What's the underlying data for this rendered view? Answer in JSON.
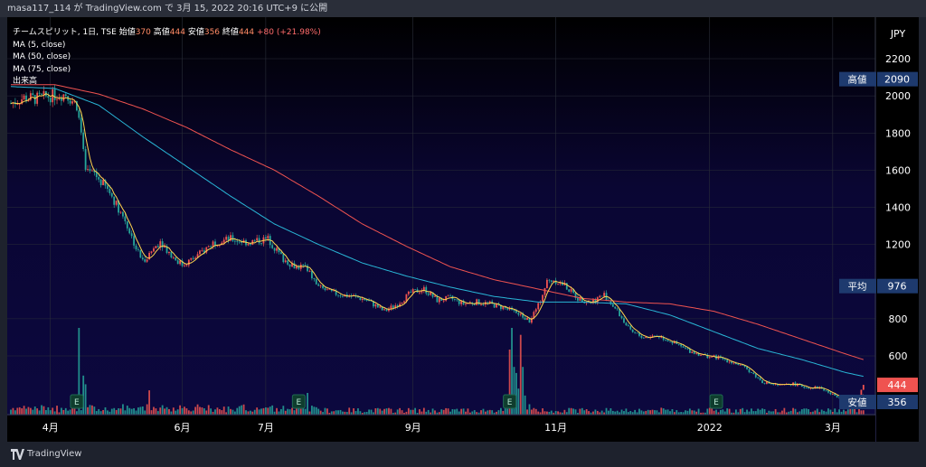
{
  "header": {
    "text": "masa117_114 が TradingView.com で 3月 15, 2022 20:16 UTC+9 に公開"
  },
  "legend": {
    "title": "チームスピリット, 1日, TSE",
    "o_label": "始値",
    "o_val": "370",
    "h_label": "高値",
    "h_val": "444",
    "l_label": "安値",
    "l_val": "356",
    "c_label": "終値",
    "c_val": "444",
    "change": "+80 (+21.98%)",
    "ma5": "MA (5, close)",
    "ma50": "MA (50, close)",
    "ma75": "MA (75, close)",
    "volume": "出来高"
  },
  "footer": {
    "brand": "TradingView",
    "logo_icon": "tradingview-logo-icon"
  },
  "colors": {
    "up": "#ef5350",
    "down": "#26a69a",
    "ma5": "#ffd54f",
    "ma50": "#29b6d6",
    "ma75": "#ef5350"
  },
  "chart_data": {
    "type": "candlestick",
    "currency": "JPY",
    "yticks": [
      "2200",
      "2000",
      "1800",
      "1600",
      "1400",
      "1200",
      "800",
      "600"
    ],
    "ylim": [
      350,
      2250
    ],
    "xticks": [
      "4月",
      "6月",
      "7月",
      "9月",
      "11月",
      "2022",
      "3月"
    ],
    "xtick_days": [
      18,
      78,
      116,
      183,
      248,
      318,
      374
    ],
    "days": 395,
    "labels": {
      "high": {
        "text": "高値",
        "value": "2090"
      },
      "avg": {
        "text": "平均",
        "value": "976"
      },
      "low": {
        "text": "安値",
        "value": "356"
      },
      "last": {
        "value": "444"
      }
    },
    "earnings_days": [
      30,
      131,
      227,
      321
    ],
    "earnings_icon": "E",
    "price_anchors": [
      [
        0,
        1960
      ],
      [
        6,
        1990
      ],
      [
        12,
        1985
      ],
      [
        18,
        2000
      ],
      [
        25,
        2010
      ],
      [
        30,
        1950
      ],
      [
        32,
        1800
      ],
      [
        34,
        1580
      ],
      [
        38,
        1580
      ],
      [
        45,
        1480
      ],
      [
        52,
        1330
      ],
      [
        57,
        1180
      ],
      [
        60,
        1110
      ],
      [
        63,
        1150
      ],
      [
        68,
        1220
      ],
      [
        73,
        1140
      ],
      [
        78,
        1090
      ],
      [
        84,
        1130
      ],
      [
        92,
        1210
      ],
      [
        100,
        1230
      ],
      [
        108,
        1210
      ],
      [
        112,
        1220
      ],
      [
        117,
        1230
      ],
      [
        124,
        1120
      ],
      [
        130,
        1080
      ],
      [
        134,
        1080
      ],
      [
        140,
        970
      ],
      [
        146,
        940
      ],
      [
        150,
        930
      ],
      [
        156,
        920
      ],
      [
        162,
        900
      ],
      [
        170,
        840
      ],
      [
        176,
        880
      ],
      [
        182,
        940
      ],
      [
        188,
        960
      ],
      [
        194,
        900
      ],
      [
        200,
        910
      ],
      [
        206,
        880
      ],
      [
        212,
        890
      ],
      [
        218,
        880
      ],
      [
        224,
        860
      ],
      [
        230,
        830
      ],
      [
        236,
        790
      ],
      [
        240,
        870
      ],
      [
        244,
        1000
      ],
      [
        247,
        1010
      ],
      [
        252,
        980
      ],
      [
        258,
        910
      ],
      [
        264,
        890
      ],
      [
        270,
        930
      ],
      [
        276,
        840
      ],
      [
        282,
        730
      ],
      [
        288,
        700
      ],
      [
        294,
        710
      ],
      [
        300,
        680
      ],
      [
        308,
        630
      ],
      [
        316,
        600
      ],
      [
        322,
        590
      ],
      [
        330,
        560
      ],
      [
        336,
        520
      ],
      [
        342,
        460
      ],
      [
        350,
        440
      ],
      [
        356,
        450
      ],
      [
        362,
        430
      ],
      [
        368,
        430
      ],
      [
        374,
        390
      ],
      [
        380,
        370
      ],
      [
        385,
        356
      ],
      [
        388,
        444
      ]
    ],
    "ma50_anchors": [
      [
        0,
        2050
      ],
      [
        20,
        2040
      ],
      [
        40,
        1950
      ],
      [
        60,
        1780
      ],
      [
        80,
        1620
      ],
      [
        100,
        1460
      ],
      [
        120,
        1310
      ],
      [
        140,
        1200
      ],
      [
        160,
        1100
      ],
      [
        180,
        1030
      ],
      [
        200,
        970
      ],
      [
        220,
        920
      ],
      [
        240,
        890
      ],
      [
        260,
        890
      ],
      [
        280,
        880
      ],
      [
        300,
        820
      ],
      [
        320,
        730
      ],
      [
        340,
        640
      ],
      [
        360,
        580
      ],
      [
        380,
        510
      ],
      [
        388,
        490
      ]
    ],
    "ma75_anchors": [
      [
        0,
        2060
      ],
      [
        20,
        2060
      ],
      [
        40,
        2010
      ],
      [
        60,
        1930
      ],
      [
        80,
        1830
      ],
      [
        100,
        1710
      ],
      [
        120,
        1600
      ],
      [
        140,
        1460
      ],
      [
        160,
        1310
      ],
      [
        180,
        1190
      ],
      [
        200,
        1080
      ],
      [
        220,
        1010
      ],
      [
        240,
        960
      ],
      [
        260,
        910
      ],
      [
        280,
        890
      ],
      [
        300,
        880
      ],
      [
        320,
        840
      ],
      [
        340,
        770
      ],
      [
        360,
        690
      ],
      [
        380,
        610
      ],
      [
        388,
        580
      ]
    ],
    "volume_spikes": [
      [
        31,
        1.0
      ],
      [
        33,
        0.45
      ],
      [
        34,
        0.35
      ],
      [
        63,
        0.28
      ],
      [
        131,
        0.22
      ],
      [
        135,
        0.25
      ],
      [
        227,
        0.75
      ],
      [
        228,
        1.0
      ],
      [
        229,
        0.55
      ],
      [
        230,
        0.48
      ],
      [
        231,
        0.3
      ],
      [
        232,
        0.92
      ],
      [
        233,
        0.55
      ],
      [
        234,
        0.22
      ],
      [
        236,
        0.12
      ]
    ]
  }
}
